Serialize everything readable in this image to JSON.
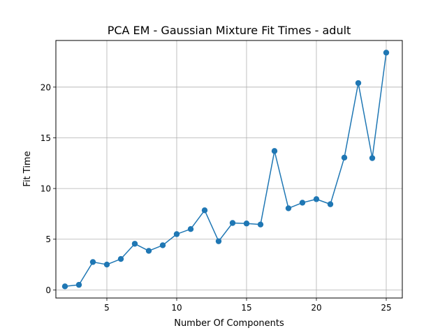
{
  "chart_data": {
    "type": "line",
    "title": "PCA EM - Gaussian Mixture Fit Times - adult",
    "xlabel": "Number Of Components",
    "ylabel": "Fit Time",
    "xlim": [
      1.35,
      26.15
    ],
    "ylim": [
      -0.8,
      24.6
    ],
    "xticks": [
      5,
      10,
      15,
      20,
      25
    ],
    "yticks": [
      0,
      5,
      10,
      15,
      20
    ],
    "grid": true,
    "series": [
      {
        "color": "#1f77b4",
        "marker": "circle",
        "x": [
          2,
          3,
          4,
          5,
          6,
          7,
          8,
          9,
          10,
          11,
          12,
          13,
          14,
          15,
          16,
          17,
          18,
          19,
          20,
          21,
          22,
          23,
          24,
          25
        ],
        "y": [
          0.35,
          0.5,
          2.75,
          2.5,
          3.05,
          4.55,
          3.85,
          4.4,
          5.5,
          6.0,
          7.85,
          4.8,
          6.6,
          6.55,
          6.45,
          13.7,
          8.05,
          8.6,
          8.95,
          8.45,
          13.05,
          20.4,
          13.0,
          23.4
        ]
      }
    ]
  }
}
